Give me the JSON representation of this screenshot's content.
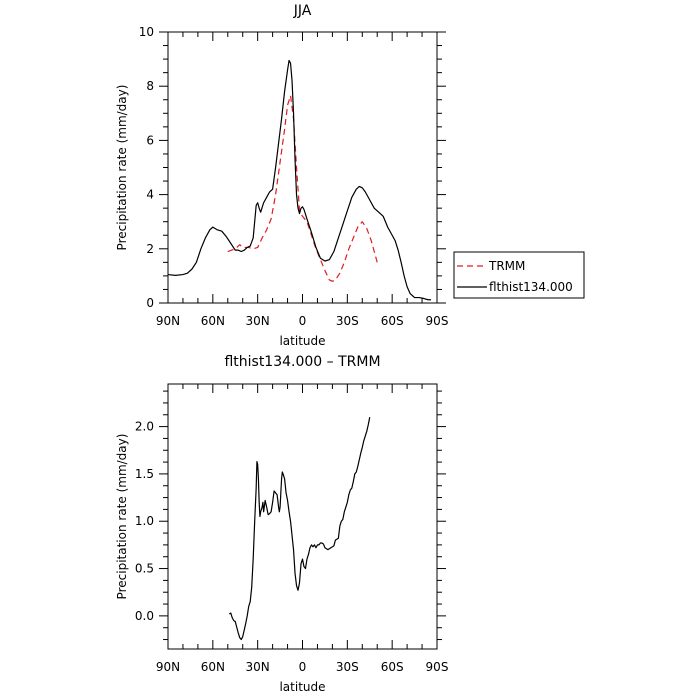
{
  "chart_data": [
    {
      "type": "line",
      "title": "JJA",
      "xlabel": "latitude",
      "ylabel": "Precipitation rate (mm/day)",
      "xlim": [
        90,
        -90
      ],
      "ylim": [
        0,
        10
      ],
      "x_ticks": [
        90,
        60,
        30,
        0,
        -30,
        -60,
        -90
      ],
      "x_tick_labels": [
        "90N",
        "60N",
        "30N",
        "0",
        "30S",
        "60S",
        "90S"
      ],
      "y_ticks": [
        0,
        2,
        4,
        6,
        8,
        10
      ],
      "y_tick_labels": [
        "0",
        "2",
        "4",
        "6",
        "8",
        "10"
      ],
      "legend_position": "right",
      "series": [
        {
          "name": "TRMM",
          "color": "#e31a1c",
          "dash": "dashed",
          "points": [
            [
              50,
              1.9
            ],
            [
              45,
              2.0
            ],
            [
              42,
              2.15
            ],
            [
              40,
              2.05
            ],
            [
              36,
              2.05
            ],
            [
              33,
              2.0
            ],
            [
              30,
              2.05
            ],
            [
              27,
              2.4
            ],
            [
              24,
              2.7
            ],
            [
              21,
              3.1
            ],
            [
              18,
              4.0
            ],
            [
              15,
              5.2
            ],
            [
              12,
              6.4
            ],
            [
              10,
              7.3
            ],
            [
              8,
              7.65
            ],
            [
              6,
              6.8
            ],
            [
              4,
              5.0
            ],
            [
              2,
              3.4
            ],
            [
              0,
              3.2
            ],
            [
              -3,
              3.0
            ],
            [
              -6,
              2.5
            ],
            [
              -9,
              2.0
            ],
            [
              -12,
              1.6
            ],
            [
              -15,
              1.2
            ],
            [
              -18,
              0.85
            ],
            [
              -20,
              0.8
            ],
            [
              -22,
              0.85
            ],
            [
              -25,
              1.1
            ],
            [
              -28,
              1.5
            ],
            [
              -31,
              2.0
            ],
            [
              -34,
              2.4
            ],
            [
              -37,
              2.8
            ],
            [
              -40,
              3.0
            ],
            [
              -43,
              2.75
            ],
            [
              -46,
              2.3
            ],
            [
              -48,
              1.9
            ],
            [
              -50,
              1.5
            ]
          ]
        },
        {
          "name": "flthist134.000",
          "color": "#000000",
          "dash": "solid",
          "points": [
            [
              90,
              1.05
            ],
            [
              85,
              1.02
            ],
            [
              80,
              1.05
            ],
            [
              77,
              1.1
            ],
            [
              74,
              1.25
            ],
            [
              71,
              1.5
            ],
            [
              68,
              2.0
            ],
            [
              65,
              2.4
            ],
            [
              62,
              2.7
            ],
            [
              60,
              2.8
            ],
            [
              57,
              2.7
            ],
            [
              54,
              2.65
            ],
            [
              51,
              2.45
            ],
            [
              48,
              2.2
            ],
            [
              45,
              1.95
            ],
            [
              43,
              1.95
            ],
            [
              41,
              1.9
            ],
            [
              39,
              1.95
            ],
            [
              37,
              2.05
            ],
            [
              35,
              2.1
            ],
            [
              33,
              2.4
            ],
            [
              31,
              3.6
            ],
            [
              30,
              3.7
            ],
            [
              29,
              3.5
            ],
            [
              28,
              3.35
            ],
            [
              26,
              3.7
            ],
            [
              24,
              3.9
            ],
            [
              22,
              4.1
            ],
            [
              20,
              4.2
            ],
            [
              18,
              5.0
            ],
            [
              16,
              5.9
            ],
            [
              14,
              6.8
            ],
            [
              12,
              7.8
            ],
            [
              10,
              8.6
            ],
            [
              9,
              8.95
            ],
            [
              8,
              8.85
            ],
            [
              7,
              8.2
            ],
            [
              6,
              7.0
            ],
            [
              5,
              5.3
            ],
            [
              4,
              4.0
            ],
            [
              3,
              3.5
            ],
            [
              2,
              3.3
            ],
            [
              1,
              3.5
            ],
            [
              0,
              3.55
            ],
            [
              -1,
              3.45
            ],
            [
              -3,
              3.1
            ],
            [
              -6,
              2.6
            ],
            [
              -9,
              2.05
            ],
            [
              -12,
              1.65
            ],
            [
              -15,
              1.55
            ],
            [
              -18,
              1.6
            ],
            [
              -21,
              1.9
            ],
            [
              -24,
              2.4
            ],
            [
              -27,
              2.9
            ],
            [
              -30,
              3.4
            ],
            [
              -33,
              3.9
            ],
            [
              -36,
              4.2
            ],
            [
              -38,
              4.3
            ],
            [
              -40,
              4.25
            ],
            [
              -42,
              4.1
            ],
            [
              -45,
              3.8
            ],
            [
              -48,
              3.5
            ],
            [
              -51,
              3.35
            ],
            [
              -54,
              3.2
            ],
            [
              -57,
              2.8
            ],
            [
              -60,
              2.5
            ],
            [
              -62,
              2.3
            ],
            [
              -64,
              1.95
            ],
            [
              -66,
              1.5
            ],
            [
              -68,
              1.0
            ],
            [
              -70,
              0.6
            ],
            [
              -72,
              0.35
            ],
            [
              -75,
              0.2
            ],
            [
              -78,
              0.2
            ],
            [
              -81,
              0.17
            ],
            [
              -84,
              0.12
            ],
            [
              -86,
              0.12
            ]
          ]
        }
      ]
    },
    {
      "type": "line",
      "title": "flthist134.000 – TRMM",
      "xlabel": "latitude",
      "ylabel": "Precipitation rate (mm/day)",
      "xlim": [
        90,
        -90
      ],
      "ylim": [
        -0.35,
        2.45
      ],
      "x_ticks": [
        90,
        60,
        30,
        0,
        -30,
        -60,
        -90
      ],
      "x_tick_labels": [
        "90N",
        "60N",
        "30N",
        "0",
        "30S",
        "60S",
        "90S"
      ],
      "y_ticks": [
        0.0,
        0.5,
        1.0,
        1.5,
        2.0
      ],
      "y_tick_labels": [
        "0.0",
        "0.5",
        "1.0",
        "1.5",
        "2.0"
      ],
      "series": [
        {
          "name": "",
          "color": "#000000",
          "dash": "solid",
          "points": [
            [
              49,
              0.02
            ],
            [
              48,
              0.03
            ],
            [
              47,
              -0.02
            ],
            [
              46,
              -0.05
            ],
            [
              45,
              -0.06
            ],
            [
              44,
              -0.12
            ],
            [
              43,
              -0.18
            ],
            [
              42,
              -0.23
            ],
            [
              41,
              -0.25
            ],
            [
              40,
              -0.22
            ],
            [
              39,
              -0.15
            ],
            [
              38,
              -0.08
            ],
            [
              37,
              0.0
            ],
            [
              36,
              0.1
            ],
            [
              35,
              0.15
            ],
            [
              34,
              0.3
            ],
            [
              33,
              0.6
            ],
            [
              32,
              1.0
            ],
            [
              31,
              1.35
            ],
            [
              30.5,
              1.63
            ],
            [
              30,
              1.6
            ],
            [
              29.5,
              1.45
            ],
            [
              29,
              1.2
            ],
            [
              28.5,
              1.05
            ],
            [
              28,
              1.1
            ],
            [
              27,
              1.15
            ],
            [
              26.5,
              1.2
            ],
            [
              26,
              1.1
            ],
            [
              25,
              1.22
            ],
            [
              24,
              1.15
            ],
            [
              23,
              1.07
            ],
            [
              22,
              1.08
            ],
            [
              21,
              1.1
            ],
            [
              20,
              1.2
            ],
            [
              19,
              1.32
            ],
            [
              18,
              1.3
            ],
            [
              17,
              1.28
            ],
            [
              16,
              1.15
            ],
            [
              15.5,
              1.1
            ],
            [
              15,
              1.15
            ],
            [
              14,
              1.45
            ],
            [
              13.5,
              1.52
            ],
            [
              13,
              1.5
            ],
            [
              12,
              1.45
            ],
            [
              11,
              1.3
            ],
            [
              10,
              1.22
            ],
            [
              9,
              1.1
            ],
            [
              8,
              1.0
            ],
            [
              7,
              0.85
            ],
            [
              6,
              0.7
            ],
            [
              5,
              0.45
            ],
            [
              4,
              0.32
            ],
            [
              3,
              0.27
            ],
            [
              2,
              0.35
            ],
            [
              1,
              0.55
            ],
            [
              0,
              0.6
            ],
            [
              -1,
              0.52
            ],
            [
              -2,
              0.5
            ],
            [
              -3,
              0.6
            ],
            [
              -4,
              0.65
            ],
            [
              -5,
              0.72
            ],
            [
              -6,
              0.75
            ],
            [
              -7,
              0.73
            ],
            [
              -8,
              0.75
            ],
            [
              -9,
              0.72
            ],
            [
              -10,
              0.75
            ],
            [
              -11,
              0.75
            ],
            [
              -12,
              0.77
            ],
            [
              -13,
              0.77
            ],
            [
              -14,
              0.76
            ],
            [
              -15,
              0.72
            ],
            [
              -17,
              0.7
            ],
            [
              -19,
              0.72
            ],
            [
              -21,
              0.74
            ],
            [
              -22,
              0.8
            ],
            [
              -24,
              0.82
            ],
            [
              -25,
              0.95
            ],
            [
              -26,
              1.0
            ],
            [
              -27,
              1.02
            ],
            [
              -28,
              1.1
            ],
            [
              -29,
              1.15
            ],
            [
              -30,
              1.2
            ],
            [
              -31,
              1.28
            ],
            [
              -32,
              1.33
            ],
            [
              -33,
              1.35
            ],
            [
              -34,
              1.42
            ],
            [
              -35,
              1.5
            ],
            [
              -36,
              1.52
            ],
            [
              -37,
              1.58
            ],
            [
              -38,
              1.65
            ],
            [
              -39,
              1.72
            ],
            [
              -40,
              1.78
            ],
            [
              -41,
              1.85
            ],
            [
              -42,
              1.9
            ],
            [
              -43,
              1.95
            ],
            [
              -44,
              2.02
            ],
            [
              -45,
              2.1
            ]
          ]
        }
      ]
    }
  ]
}
